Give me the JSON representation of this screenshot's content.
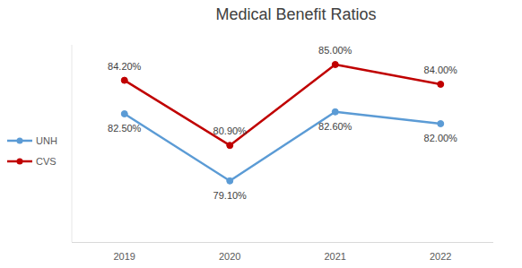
{
  "chart_data": {
    "type": "line",
    "title": "Medical Benefit Ratios",
    "categories": [
      "2019",
      "2020",
      "2021",
      "2022"
    ],
    "series": [
      {
        "name": "UNH",
        "color": "#5b9bd5",
        "marker": "circle",
        "values": [
          82.5,
          79.1,
          82.6,
          82.0
        ],
        "value_labels": [
          "82.50%",
          "79.10%",
          "82.60%",
          "82.00%"
        ]
      },
      {
        "name": "CVS",
        "color": "#c00000",
        "marker": "circle",
        "values": [
          84.2,
          80.9,
          85.0,
          84.0
        ],
        "value_labels": [
          "84.20%",
          "80.90%",
          "85.00%",
          "84.00%"
        ]
      }
    ],
    "ylim": [
      76,
      86
    ],
    "grid": false,
    "legend": "left",
    "data_labels": true,
    "tick_labels": "x"
  }
}
